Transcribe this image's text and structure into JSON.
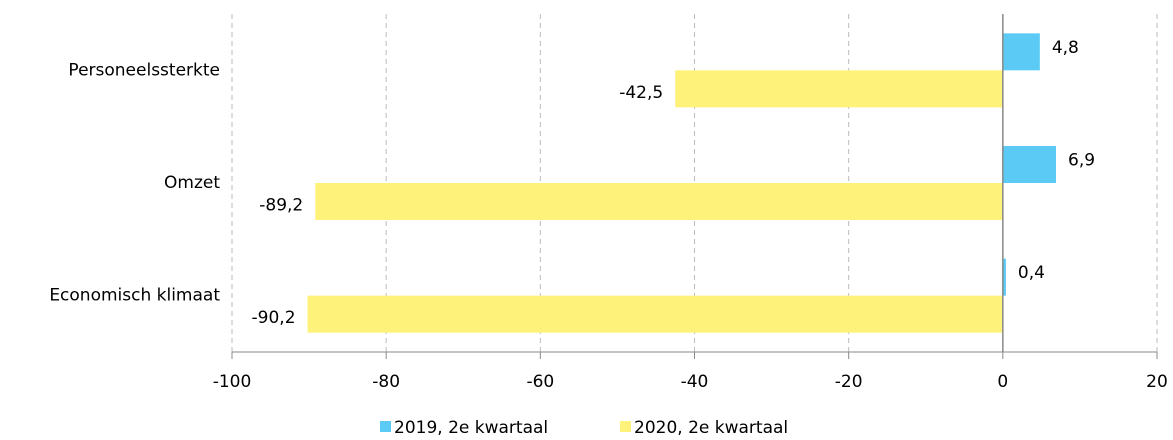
{
  "chart_data": {
    "type": "bar",
    "orientation": "horizontal",
    "categories": [
      "Personeelssterkte",
      "Omzet",
      "Economisch klimaat"
    ],
    "series": [
      {
        "name": "2019, 2e kwartaal",
        "color": "#5bcbf5",
        "values": [
          4.8,
          6.9,
          0.4
        ],
        "value_labels": [
          "4,8",
          "6,9",
          "0,4"
        ]
      },
      {
        "name": "2020, 2e kwartaal",
        "color": "#fff27a",
        "values": [
          -42.5,
          -89.2,
          -90.2
        ],
        "value_labels": [
          "-42,5",
          "-89,2",
          "-90,2"
        ]
      }
    ],
    "xlim": [
      -100,
      20
    ],
    "xticks": [
      -100,
      -80,
      -60,
      -40,
      -20,
      0,
      20
    ],
    "grid": true,
    "legend": "bottom"
  }
}
